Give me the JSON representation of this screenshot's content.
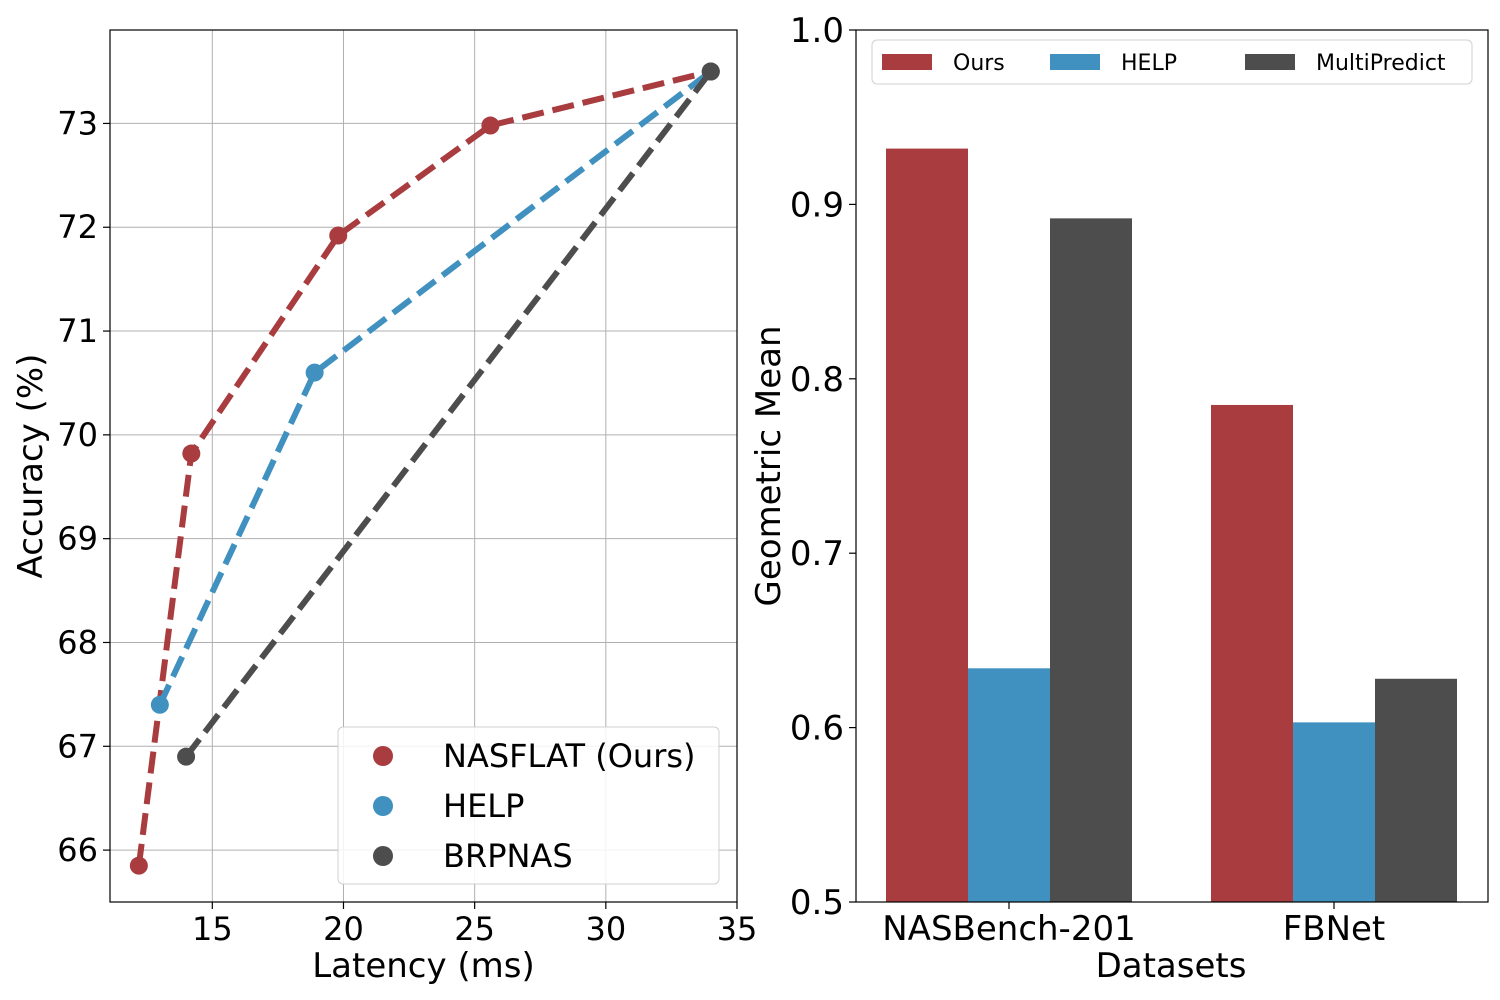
{
  "chart_data": [
    {
      "type": "line",
      "xlabel": "Latency (ms)",
      "ylabel": "Accuracy (%)",
      "xlim": [
        11.1,
        35.0
      ],
      "ylim": [
        65.5,
        73.9
      ],
      "xticks": [
        15,
        20,
        25,
        30,
        35
      ],
      "yticks": [
        66,
        67,
        68,
        69,
        70,
        71,
        72,
        73
      ],
      "grid": true,
      "legend_position": "bottom-right",
      "series": [
        {
          "name": "NASFLAT (Ours)",
          "color": "#a83c3f",
          "x": [
            12.2,
            14.2,
            19.8,
            25.6,
            34.0
          ],
          "y": [
            65.85,
            69.82,
            71.92,
            72.98,
            73.5
          ]
        },
        {
          "name": "HELP",
          "color": "#4090c0",
          "x": [
            13.0,
            18.9,
            34.0
          ],
          "y": [
            67.4,
            70.6,
            73.5
          ]
        },
        {
          "name": "BRPNAS",
          "color": "#4d4d4d",
          "x": [
            14.0,
            34.0
          ],
          "y": [
            66.9,
            73.5
          ]
        }
      ]
    },
    {
      "type": "bar",
      "xlabel": "Datasets",
      "ylabel": "Geometric Mean",
      "categories": [
        "NASBench-201",
        "FBNet"
      ],
      "ylim": [
        0.5,
        1.0
      ],
      "yticks": [
        "0.5",
        "0.6",
        "0.7",
        "0.8",
        "0.9",
        "1.0"
      ],
      "grid": false,
      "legend_position": "top",
      "series": [
        {
          "name": "Ours",
          "color": "#a83c3f",
          "values": [
            0.932,
            0.785
          ]
        },
        {
          "name": "HELP",
          "color": "#4090c0",
          "values": [
            0.634,
            0.603
          ]
        },
        {
          "name": "MultiPredict",
          "color": "#4d4d4d",
          "values": [
            0.892,
            0.628
          ]
        }
      ]
    }
  ]
}
